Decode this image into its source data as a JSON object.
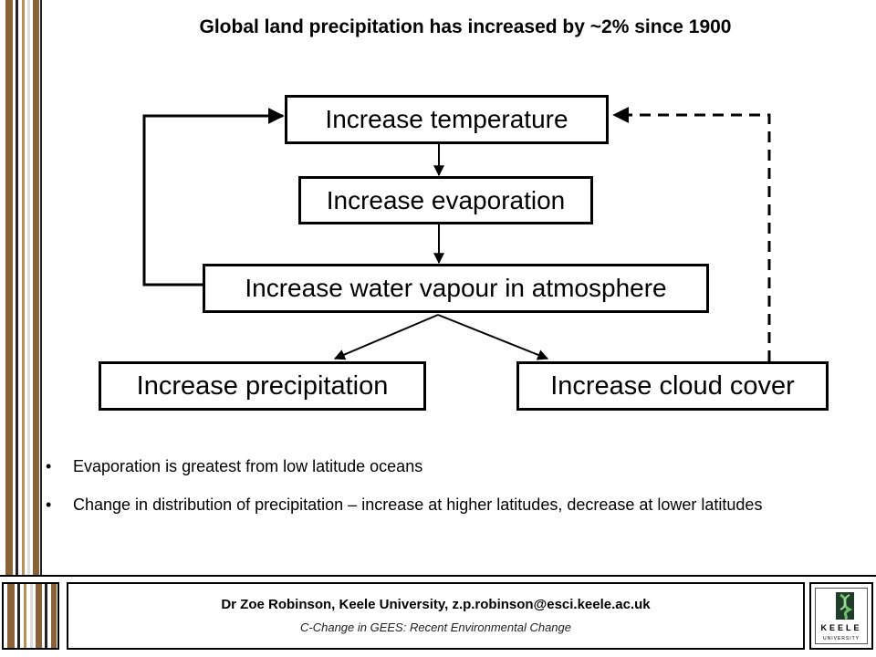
{
  "slide": {
    "title": "Global land precipitation has increased by ~2% since 1900"
  },
  "diagram": {
    "nodes": {
      "temperature": "Increase temperature",
      "evaporation": "Increase evaporation",
      "water_vapour": "Increase water vapour in atmosphere",
      "precipitation": "Increase precipitation",
      "cloud_cover": "Increase cloud cover"
    }
  },
  "bullets": [
    "Evaporation is greatest from low latitude oceans",
    "Change in distribution of precipitation – increase at higher latitudes, decrease at lower latitudes"
  ],
  "footer": {
    "author": "Dr Zoe Robinson, Keele University, z.p.robinson@esci.keele.ac.uk",
    "course": "C-Change in GEES: Recent Environmental Change",
    "logo_text": "KEELE",
    "logo_subtext": "UNIVERSITY"
  },
  "colors": {
    "stripe_brown": "#8a6238",
    "stripe_dark": "#2a2a2a",
    "logo_green": "#2f6b3a"
  }
}
